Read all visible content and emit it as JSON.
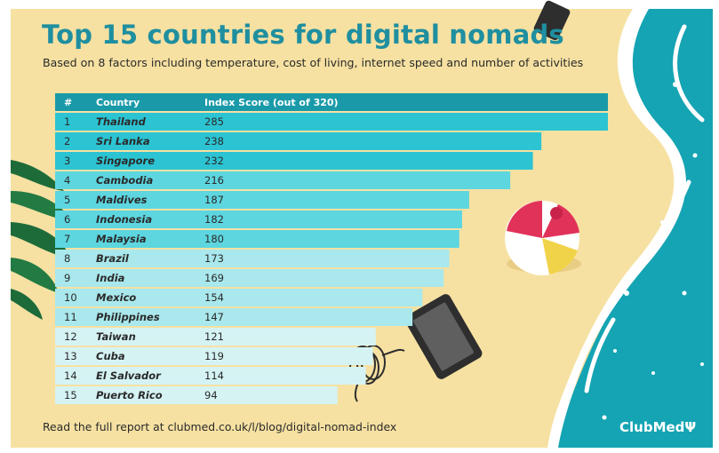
{
  "header": {
    "title": "Top 15 countries for digital nomads",
    "subtitle": "Based on 8 factors including temperature, cost of living, internet speed and number of activities"
  },
  "footer": {
    "note": "Read the full report at clubmed.co.uk/l/blog/digital-nomad-index",
    "brand": "ClubMedΨ"
  },
  "colors": {
    "sand": "#f6e1a2",
    "sea": "#15a4b3",
    "header_bar": "#1a9aa9",
    "title": "#1f8fa0",
    "tiers": [
      "#2cc4d3",
      "#5dd6e0",
      "#a9e8ec",
      "#d6f3f4"
    ]
  },
  "chart_data": {
    "type": "table",
    "columns": [
      "#",
      "Country",
      "Index Score (out of 320)"
    ],
    "value_max": 320,
    "rows": [
      {
        "rank": "1",
        "country": "Thailand",
        "score": 285,
        "tier": 0
      },
      {
        "rank": "2",
        "country": "Sri Lanka",
        "score": 238,
        "tier": 0
      },
      {
        "rank": "3",
        "country": "Singapore",
        "score": 232,
        "tier": 0
      },
      {
        "rank": "4",
        "country": "Cambodia",
        "score": 216,
        "tier": 1
      },
      {
        "rank": "5",
        "country": "Maldives",
        "score": 187,
        "tier": 1
      },
      {
        "rank": "6",
        "country": "Indonesia",
        "score": 182,
        "tier": 1
      },
      {
        "rank": "7",
        "country": "Malaysia",
        "score": 180,
        "tier": 1
      },
      {
        "rank": "8",
        "country": "Brazil",
        "score": 173,
        "tier": 2
      },
      {
        "rank": "9",
        "country": "India",
        "score": 169,
        "tier": 2
      },
      {
        "rank": "10",
        "country": "Mexico",
        "score": 154,
        "tier": 2
      },
      {
        "rank": "11",
        "country": "Philippines",
        "score": 147,
        "tier": 2
      },
      {
        "rank": "12",
        "country": "Taiwan",
        "score": 121,
        "tier": 3
      },
      {
        "rank": "13",
        "country": "Cuba",
        "score": 119,
        "tier": 3
      },
      {
        "rank": "14",
        "country": "El Salvador",
        "score": 114,
        "tier": 3
      },
      {
        "rank": "15",
        "country": "Puerto Rico",
        "score": 94,
        "tier": 3
      }
    ]
  }
}
